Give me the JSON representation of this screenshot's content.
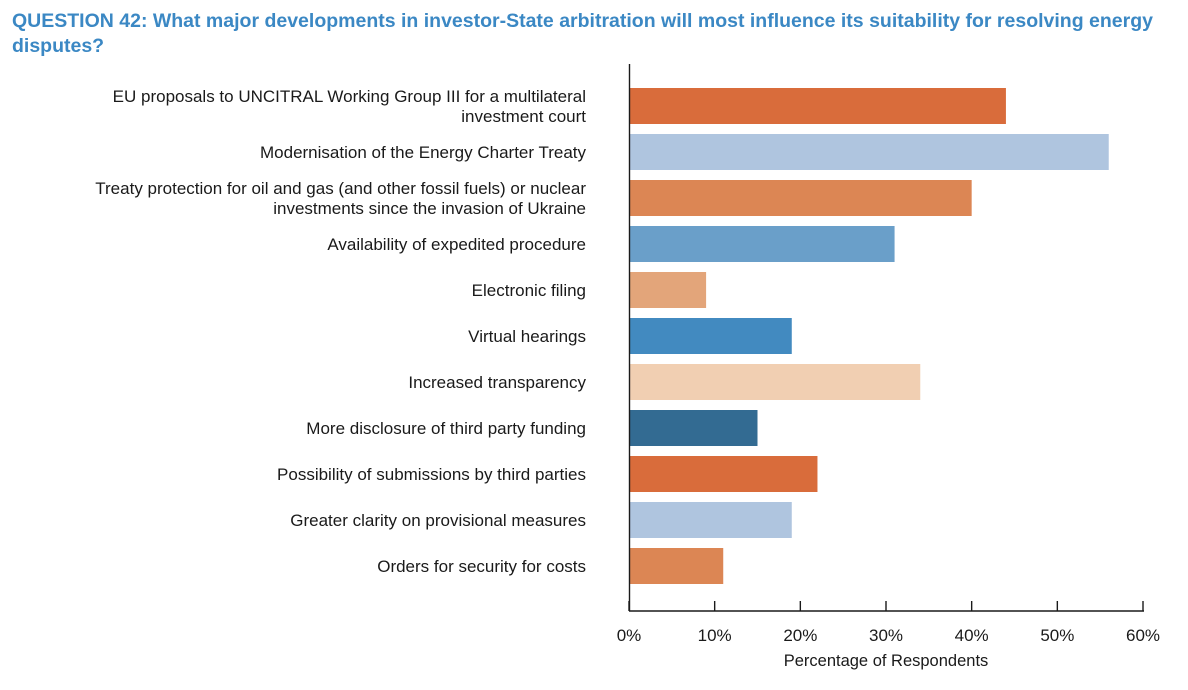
{
  "chart_data": {
    "type": "bar",
    "orientation": "horizontal",
    "title": "QUESTION 42: What major developments in investor-State arbitration will most influence its suitability for resolving energy disputes?",
    "xlabel": "Percentage of Respondents",
    "ylabel": "",
    "xlim": [
      0,
      60
    ],
    "xticks": [
      0,
      10,
      20,
      30,
      40,
      50,
      60
    ],
    "xtick_labels": [
      "0%",
      "10%",
      "20%",
      "30%",
      "40%",
      "50%",
      "60%"
    ],
    "grid": false,
    "categories": [
      [
        "EU proposals to UNCITRAL Working Group III for a multilateral",
        "investment court"
      ],
      [
        "Modernisation of the Energy Charter Treaty"
      ],
      [
        "Treaty protection for oil and gas (and other fossil fuels) or nuclear",
        "investments since the invasion of Ukraine"
      ],
      [
        "Availability of expedited procedure"
      ],
      [
        "Electronic filing"
      ],
      [
        "Virtual hearings"
      ],
      [
        "Increased transparency"
      ],
      [
        "More disclosure of third party funding"
      ],
      [
        "Possibility of submissions by third parties"
      ],
      [
        "Greater clarity on provisional measures"
      ],
      [
        "Orders for security for costs"
      ]
    ],
    "values": [
      44,
      56,
      40,
      31,
      9,
      19,
      34,
      15,
      22,
      19,
      11
    ],
    "colors": [
      "#d96c3b",
      "#afc5df",
      "#dc8654",
      "#6a9fc9",
      "#e3a57a",
      "#428ac0",
      "#f1cfb2",
      "#336b92",
      "#d96c3b",
      "#afc5df",
      "#dc8654"
    ]
  }
}
